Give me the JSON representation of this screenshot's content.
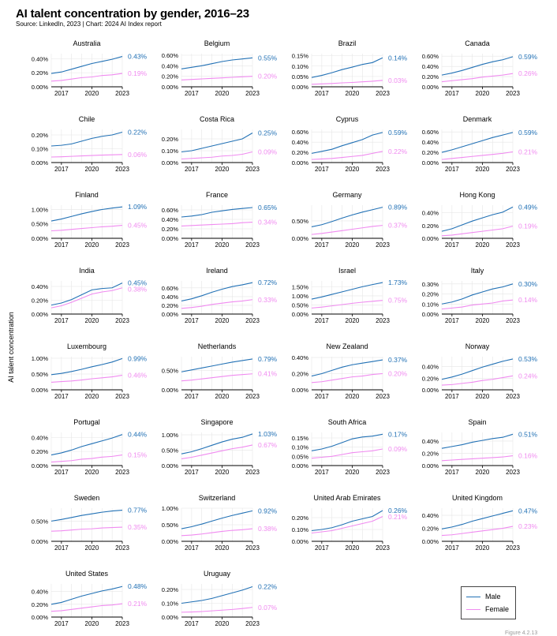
{
  "title": "AI talent concentration by gender, 2016–23",
  "source": "Source: LinkedIn, 2023 | Chart: 2024 AI Index report",
  "figure_number": "Figure 4.2.13",
  "colors": {
    "male": "#2271b5",
    "female": "#f08bf0",
    "grid": "#e6e6e6",
    "axis": "#000000"
  },
  "legend": {
    "male": "Male",
    "female": "Female"
  },
  "chart_data": {
    "type": "line",
    "ylabel": "AI talent concentration",
    "x": [
      2016,
      2017,
      2018,
      2019,
      2020,
      2021,
      2022,
      2023
    ],
    "x_ticks": [
      "2017",
      "2020",
      "2023"
    ],
    "panels": [
      {
        "name": "Australia",
        "yticks": [
          0,
          0.2,
          0.4
        ],
        "ymax": 0.47,
        "male_label": "0.43%",
        "female_label": "0.19%",
        "male": [
          0.19,
          0.21,
          0.25,
          0.29,
          0.33,
          0.36,
          0.39,
          0.43
        ],
        "female": [
          0.08,
          0.09,
          0.11,
          0.13,
          0.14,
          0.16,
          0.17,
          0.19
        ]
      },
      {
        "name": "Belgium",
        "yticks": [
          0,
          0.2,
          0.4,
          0.6
        ],
        "ymax": 0.63,
        "male_label": "0.55%",
        "female_label": "0.20%",
        "male": [
          0.34,
          0.37,
          0.4,
          0.44,
          0.48,
          0.51,
          0.53,
          0.55
        ],
        "female": [
          0.13,
          0.14,
          0.15,
          0.16,
          0.17,
          0.18,
          0.19,
          0.2
        ]
      },
      {
        "name": "Brazil",
        "yticks": [
          0,
          0.05,
          0.1,
          0.15
        ],
        "ymax": 0.16,
        "male_label": "0.14%",
        "female_label": "0.03%",
        "male": [
          0.045,
          0.055,
          0.068,
          0.083,
          0.095,
          0.108,
          0.117,
          0.14
        ],
        "female": [
          0.012,
          0.014,
          0.016,
          0.019,
          0.021,
          0.024,
          0.027,
          0.031
        ]
      },
      {
        "name": "Canada",
        "yticks": [
          0,
          0.2,
          0.4,
          0.6
        ],
        "ymax": 0.65,
        "male_label": "0.59%",
        "female_label": "0.26%",
        "male": [
          0.23,
          0.27,
          0.32,
          0.38,
          0.44,
          0.49,
          0.53,
          0.59
        ],
        "female": [
          0.1,
          0.12,
          0.14,
          0.16,
          0.19,
          0.21,
          0.23,
          0.26
        ]
      },
      {
        "name": "Chile",
        "yticks": [
          0,
          0.1,
          0.2
        ],
        "ymax": 0.24,
        "male_label": "0.22%",
        "female_label": "0.06%",
        "male": [
          0.12,
          0.125,
          0.135,
          0.155,
          0.175,
          0.19,
          0.2,
          0.22
        ],
        "female": [
          0.04,
          0.042,
          0.045,
          0.048,
          0.051,
          0.054,
          0.056,
          0.058
        ]
      },
      {
        "name": "Costa Rica",
        "yticks": [
          0,
          0.1,
          0.2
        ],
        "ymax": 0.28,
        "male_label": "0.25%",
        "female_label": "0.09%",
        "male": [
          0.09,
          0.1,
          0.12,
          0.14,
          0.16,
          0.18,
          0.2,
          0.25
        ],
        "female": [
          0.03,
          0.035,
          0.04,
          0.045,
          0.055,
          0.06,
          0.07,
          0.09
        ]
      },
      {
        "name": "Cyprus",
        "yticks": [
          0,
          0.2,
          0.4,
          0.6
        ],
        "ymax": 0.65,
        "male_label": "0.59%",
        "female_label": "0.22%",
        "male": [
          0.18,
          0.22,
          0.26,
          0.33,
          0.39,
          0.45,
          0.54,
          0.59
        ],
        "female": [
          0.06,
          0.07,
          0.08,
          0.1,
          0.12,
          0.14,
          0.18,
          0.22
        ]
      },
      {
        "name": "Denmark",
        "yticks": [
          0,
          0.2,
          0.4,
          0.6
        ],
        "ymax": 0.65,
        "male_label": "0.59%",
        "female_label": "0.21%",
        "male": [
          0.2,
          0.25,
          0.31,
          0.37,
          0.43,
          0.49,
          0.54,
          0.59
        ],
        "female": [
          0.06,
          0.08,
          0.1,
          0.12,
          0.14,
          0.16,
          0.18,
          0.21
        ]
      },
      {
        "name": "Finland",
        "yticks": [
          0,
          0.5,
          1.0
        ],
        "ymax": 1.15,
        "male_label": "1.09%",
        "female_label": "0.45%",
        "male": [
          0.6,
          0.67,
          0.76,
          0.85,
          0.93,
          1.0,
          1.05,
          1.09
        ],
        "female": [
          0.26,
          0.28,
          0.31,
          0.34,
          0.37,
          0.4,
          0.42,
          0.45
        ]
      },
      {
        "name": "France",
        "yticks": [
          0,
          0.2,
          0.4,
          0.6
        ],
        "ymax": 0.7,
        "male_label": "0.65%",
        "female_label": "0.34%",
        "male": [
          0.45,
          0.47,
          0.5,
          0.55,
          0.58,
          0.61,
          0.63,
          0.65
        ],
        "female": [
          0.26,
          0.27,
          0.28,
          0.29,
          0.3,
          0.31,
          0.33,
          0.34
        ]
      },
      {
        "name": "Germany",
        "yticks": [
          0,
          0.5
        ],
        "ymax": 0.95,
        "male_label": "0.89%",
        "female_label": "0.37%",
        "male": [
          0.33,
          0.39,
          0.48,
          0.58,
          0.67,
          0.75,
          0.82,
          0.89
        ],
        "female": [
          0.11,
          0.14,
          0.18,
          0.22,
          0.26,
          0.3,
          0.34,
          0.37
        ]
      },
      {
        "name": "Hong Kong",
        "yticks": [
          0,
          0.2,
          0.4
        ],
        "ymax": 0.52,
        "male_label": "0.49%",
        "female_label": "0.19%",
        "male": [
          0.11,
          0.15,
          0.21,
          0.27,
          0.32,
          0.37,
          0.41,
          0.49
        ],
        "female": [
          0.04,
          0.05,
          0.07,
          0.09,
          0.11,
          0.13,
          0.15,
          0.19
        ]
      },
      {
        "name": "India",
        "yticks": [
          0,
          0.2,
          0.4
        ],
        "ymax": 0.48,
        "male_label": "0.45%",
        "female_label": "0.38%",
        "male": [
          0.13,
          0.16,
          0.21,
          0.28,
          0.35,
          0.37,
          0.38,
          0.45
        ],
        "female": [
          0.09,
          0.12,
          0.17,
          0.23,
          0.29,
          0.32,
          0.34,
          0.38
        ]
      },
      {
        "name": "Ireland",
        "yticks": [
          0,
          0.2,
          0.4,
          0.6
        ],
        "ymax": 0.76,
        "male_label": "0.72%",
        "female_label": "0.33%",
        "male": [
          0.3,
          0.35,
          0.42,
          0.5,
          0.57,
          0.63,
          0.67,
          0.72
        ],
        "female": [
          0.13,
          0.15,
          0.18,
          0.22,
          0.25,
          0.28,
          0.3,
          0.33
        ]
      },
      {
        "name": "Israel",
        "yticks": [
          0,
          0.5,
          1.0,
          1.5
        ],
        "ymax": 1.82,
        "male_label": "1.73%",
        "female_label": "0.75%",
        "male": [
          0.82,
          0.94,
          1.08,
          1.22,
          1.36,
          1.5,
          1.62,
          1.73
        ],
        "female": [
          0.33,
          0.38,
          0.45,
          0.52,
          0.59,
          0.65,
          0.7,
          0.75
        ]
      },
      {
        "name": "Italy",
        "yticks": [
          0,
          0.1,
          0.2,
          0.3
        ],
        "ymax": 0.33,
        "male_label": "0.30%",
        "female_label": "0.14%",
        "male": [
          0.1,
          0.12,
          0.15,
          0.19,
          0.22,
          0.25,
          0.27,
          0.3
        ],
        "female": [
          0.05,
          0.06,
          0.07,
          0.09,
          0.1,
          0.11,
          0.13,
          0.14
        ]
      },
      {
        "name": "Luxembourg",
        "yticks": [
          0,
          0.5,
          1.0
        ],
        "ymax": 1.05,
        "male_label": "0.99%",
        "female_label": "0.46%",
        "male": [
          0.48,
          0.52,
          0.58,
          0.65,
          0.73,
          0.8,
          0.88,
          0.99
        ],
        "female": [
          0.24,
          0.26,
          0.28,
          0.31,
          0.35,
          0.38,
          0.41,
          0.46
        ]
      },
      {
        "name": "Netherlands",
        "yticks": [
          0,
          0.5
        ],
        "ymax": 0.85,
        "male_label": "0.79%",
        "female_label": "0.41%",
        "male": [
          0.46,
          0.51,
          0.56,
          0.61,
          0.66,
          0.71,
          0.75,
          0.79
        ],
        "female": [
          0.23,
          0.25,
          0.28,
          0.31,
          0.34,
          0.37,
          0.39,
          0.41
        ]
      },
      {
        "name": "New Zealand",
        "yticks": [
          0,
          0.2,
          0.4
        ],
        "ymax": 0.41,
        "male_label": "0.37%",
        "female_label": "0.20%",
        "male": [
          0.17,
          0.2,
          0.24,
          0.28,
          0.31,
          0.33,
          0.35,
          0.37
        ],
        "female": [
          0.09,
          0.1,
          0.12,
          0.14,
          0.16,
          0.17,
          0.19,
          0.2
        ]
      },
      {
        "name": "Norway",
        "yticks": [
          0,
          0.2,
          0.4
        ],
        "ymax": 0.57,
        "male_label": "0.53%",
        "female_label": "0.24%",
        "male": [
          0.18,
          0.22,
          0.27,
          0.33,
          0.39,
          0.44,
          0.49,
          0.53
        ],
        "female": [
          0.08,
          0.09,
          0.11,
          0.13,
          0.16,
          0.18,
          0.21,
          0.24
        ]
      },
      {
        "name": "Portugal",
        "yticks": [
          0,
          0.2,
          0.4
        ],
        "ymax": 0.47,
        "male_label": "0.44%",
        "female_label": "0.15%",
        "male": [
          0.15,
          0.18,
          0.22,
          0.27,
          0.31,
          0.35,
          0.39,
          0.44
        ],
        "female": [
          0.05,
          0.06,
          0.07,
          0.09,
          0.1,
          0.12,
          0.13,
          0.15
        ]
      },
      {
        "name": "Singapore",
        "yticks": [
          0,
          0.5,
          1.0
        ],
        "ymax": 1.08,
        "male_label": "1.03%",
        "female_label": "0.67%",
        "male": [
          0.38,
          0.45,
          0.55,
          0.66,
          0.77,
          0.86,
          0.92,
          1.03
        ],
        "female": [
          0.22,
          0.27,
          0.34,
          0.41,
          0.48,
          0.55,
          0.6,
          0.67
        ]
      },
      {
        "name": "South Africa",
        "yticks": [
          0,
          0.05,
          0.1,
          0.15
        ],
        "ymax": 0.18,
        "male_label": "0.17%",
        "female_label": "0.09%",
        "male": [
          0.08,
          0.09,
          0.105,
          0.125,
          0.145,
          0.155,
          0.16,
          0.17
        ],
        "female": [
          0.04,
          0.045,
          0.05,
          0.06,
          0.07,
          0.075,
          0.08,
          0.09
        ]
      },
      {
        "name": "Spain",
        "yticks": [
          0,
          0.2,
          0.4
        ],
        "ymax": 0.54,
        "male_label": "0.51%",
        "female_label": "0.16%",
        "male": [
          0.28,
          0.31,
          0.34,
          0.38,
          0.41,
          0.44,
          0.46,
          0.51
        ],
        "female": [
          0.08,
          0.09,
          0.1,
          0.11,
          0.12,
          0.13,
          0.14,
          0.16
        ]
      },
      {
        "name": "Sweden",
        "yticks": [
          0,
          0.5
        ],
        "ymax": 0.82,
        "male_label": "0.77%",
        "female_label": "0.35%",
        "male": [
          0.5,
          0.54,
          0.59,
          0.64,
          0.68,
          0.72,
          0.75,
          0.77
        ],
        "female": [
          0.25,
          0.26,
          0.28,
          0.3,
          0.31,
          0.33,
          0.34,
          0.35
        ]
      },
      {
        "name": "Switzerland",
        "yticks": [
          0,
          0.5,
          1.0
        ],
        "ymax": 1.0,
        "male_label": "0.92%",
        "female_label": "0.38%",
        "male": [
          0.38,
          0.44,
          0.52,
          0.61,
          0.7,
          0.78,
          0.85,
          0.92
        ],
        "female": [
          0.17,
          0.19,
          0.22,
          0.26,
          0.3,
          0.33,
          0.35,
          0.38
        ]
      },
      {
        "name": "United Arab Emirates",
        "yticks": [
          0,
          0.1,
          0.2
        ],
        "ymax": 0.28,
        "male_label": "0.26%",
        "female_label": "0.21%",
        "male": [
          0.09,
          0.1,
          0.115,
          0.14,
          0.17,
          0.19,
          0.21,
          0.26
        ],
        "female": [
          0.07,
          0.08,
          0.09,
          0.11,
          0.13,
          0.15,
          0.17,
          0.21
        ]
      },
      {
        "name": "United Kingdom",
        "yticks": [
          0,
          0.2,
          0.4
        ],
        "ymax": 0.51,
        "male_label": "0.47%",
        "female_label": "0.23%",
        "male": [
          0.19,
          0.22,
          0.26,
          0.31,
          0.35,
          0.39,
          0.43,
          0.47
        ],
        "female": [
          0.09,
          0.1,
          0.12,
          0.14,
          0.16,
          0.18,
          0.2,
          0.23
        ]
      },
      {
        "name": "United States",
        "yticks": [
          0,
          0.2,
          0.4
        ],
        "ymax": 0.52,
        "male_label": "0.48%",
        "female_label": "0.21%",
        "male": [
          0.2,
          0.23,
          0.28,
          0.33,
          0.37,
          0.41,
          0.44,
          0.48
        ],
        "female": [
          0.09,
          0.1,
          0.12,
          0.14,
          0.16,
          0.18,
          0.19,
          0.21
        ]
      },
      {
        "name": "Uruguay",
        "yticks": [
          0,
          0.1,
          0.2
        ],
        "ymax": 0.24,
        "male_label": "0.22%",
        "female_label": "0.07%",
        "male": [
          0.1,
          0.11,
          0.12,
          0.135,
          0.155,
          0.175,
          0.195,
          0.22
        ],
        "female": [
          0.035,
          0.037,
          0.04,
          0.045,
          0.05,
          0.055,
          0.062,
          0.07
        ]
      }
    ]
  }
}
